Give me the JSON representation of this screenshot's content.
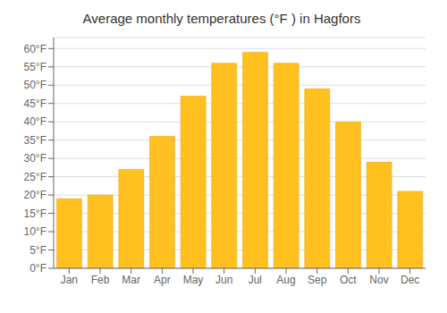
{
  "chart_data": {
    "type": "bar",
    "title": "Average monthly temperatures (°F ) in Hagfors",
    "categories": [
      "Jan",
      "Feb",
      "Mar",
      "Apr",
      "May",
      "Jun",
      "Jul",
      "Aug",
      "Sep",
      "Oct",
      "Nov",
      "Dec"
    ],
    "values": [
      19,
      20,
      27,
      36,
      47,
      56,
      59,
      56,
      49,
      40,
      29,
      21
    ],
    "color": "#FFC020",
    "ylim": [
      0,
      63
    ],
    "yticks": [
      {
        "value": 0,
        "label": "0°F"
      },
      {
        "value": 5,
        "label": "5°F"
      },
      {
        "value": 10,
        "label": "10°F"
      },
      {
        "value": 15,
        "label": "15°F"
      },
      {
        "value": 20,
        "label": "20°F"
      },
      {
        "value": 25,
        "label": "25°F"
      },
      {
        "value": 30,
        "label": "30°F"
      },
      {
        "value": 35,
        "label": "35°F"
      },
      {
        "value": 40,
        "label": "40°F"
      },
      {
        "value": 45,
        "label": "45°F"
      },
      {
        "value": 50,
        "label": "50°F"
      },
      {
        "value": 55,
        "label": "55°F"
      },
      {
        "value": 60,
        "label": "60°F"
      }
    ],
    "grid": true
  }
}
